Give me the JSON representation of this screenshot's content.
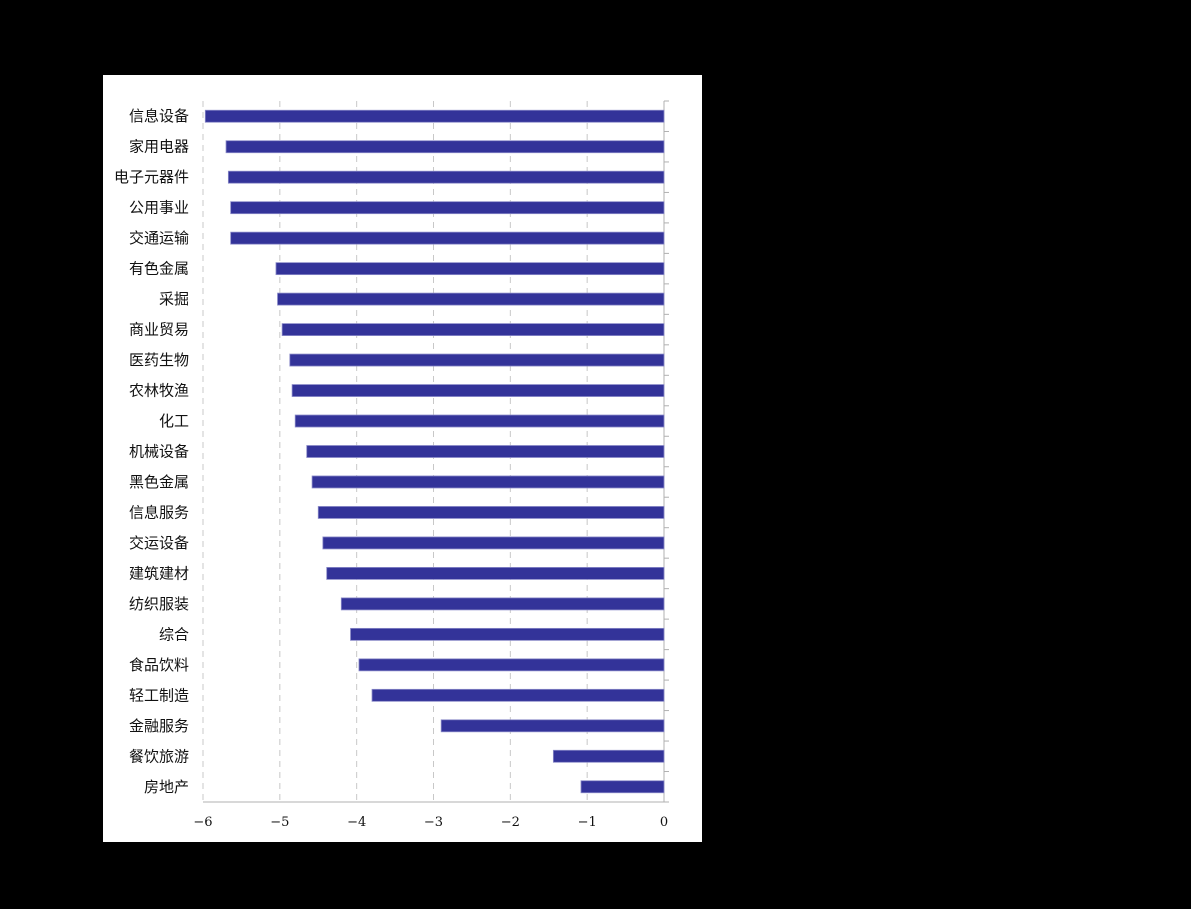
{
  "chart_data": {
    "type": "bar",
    "orientation": "horizontal",
    "title": "",
    "xlabel": "",
    "ylabel": "",
    "xlim": [
      -6,
      0
    ],
    "x_ticks": [
      "−6",
      "−5",
      "−4",
      "−3",
      "−2",
      "−1",
      "0"
    ],
    "x_tick_values": [
      -6,
      -5,
      -4,
      -3,
      -2,
      -1,
      0
    ],
    "grid": "vertical dashed",
    "legend": null,
    "bar_color": "#333399",
    "categories": [
      "信息设备",
      "家用电器",
      "电子元器件",
      "公用事业",
      "交通运输",
      "有色金属",
      "采掘",
      "商业贸易",
      "医药生物",
      "农林牧渔",
      "化工",
      "机械设备",
      "黑色金属",
      "信息服务",
      "交运设备",
      "建筑建材",
      "纺织服装",
      "综合",
      "食品饮料",
      "轻工制造",
      "金融服务",
      "餐饮旅游",
      "房地产"
    ],
    "values": [
      -5.97,
      -5.7,
      -5.67,
      -5.64,
      -5.64,
      -5.05,
      -5.03,
      -4.97,
      -4.87,
      -4.84,
      -4.8,
      -4.65,
      -4.58,
      -4.5,
      -4.44,
      -4.39,
      -4.2,
      -4.08,
      -3.97,
      -3.8,
      -2.9,
      -1.44,
      -1.08
    ]
  }
}
